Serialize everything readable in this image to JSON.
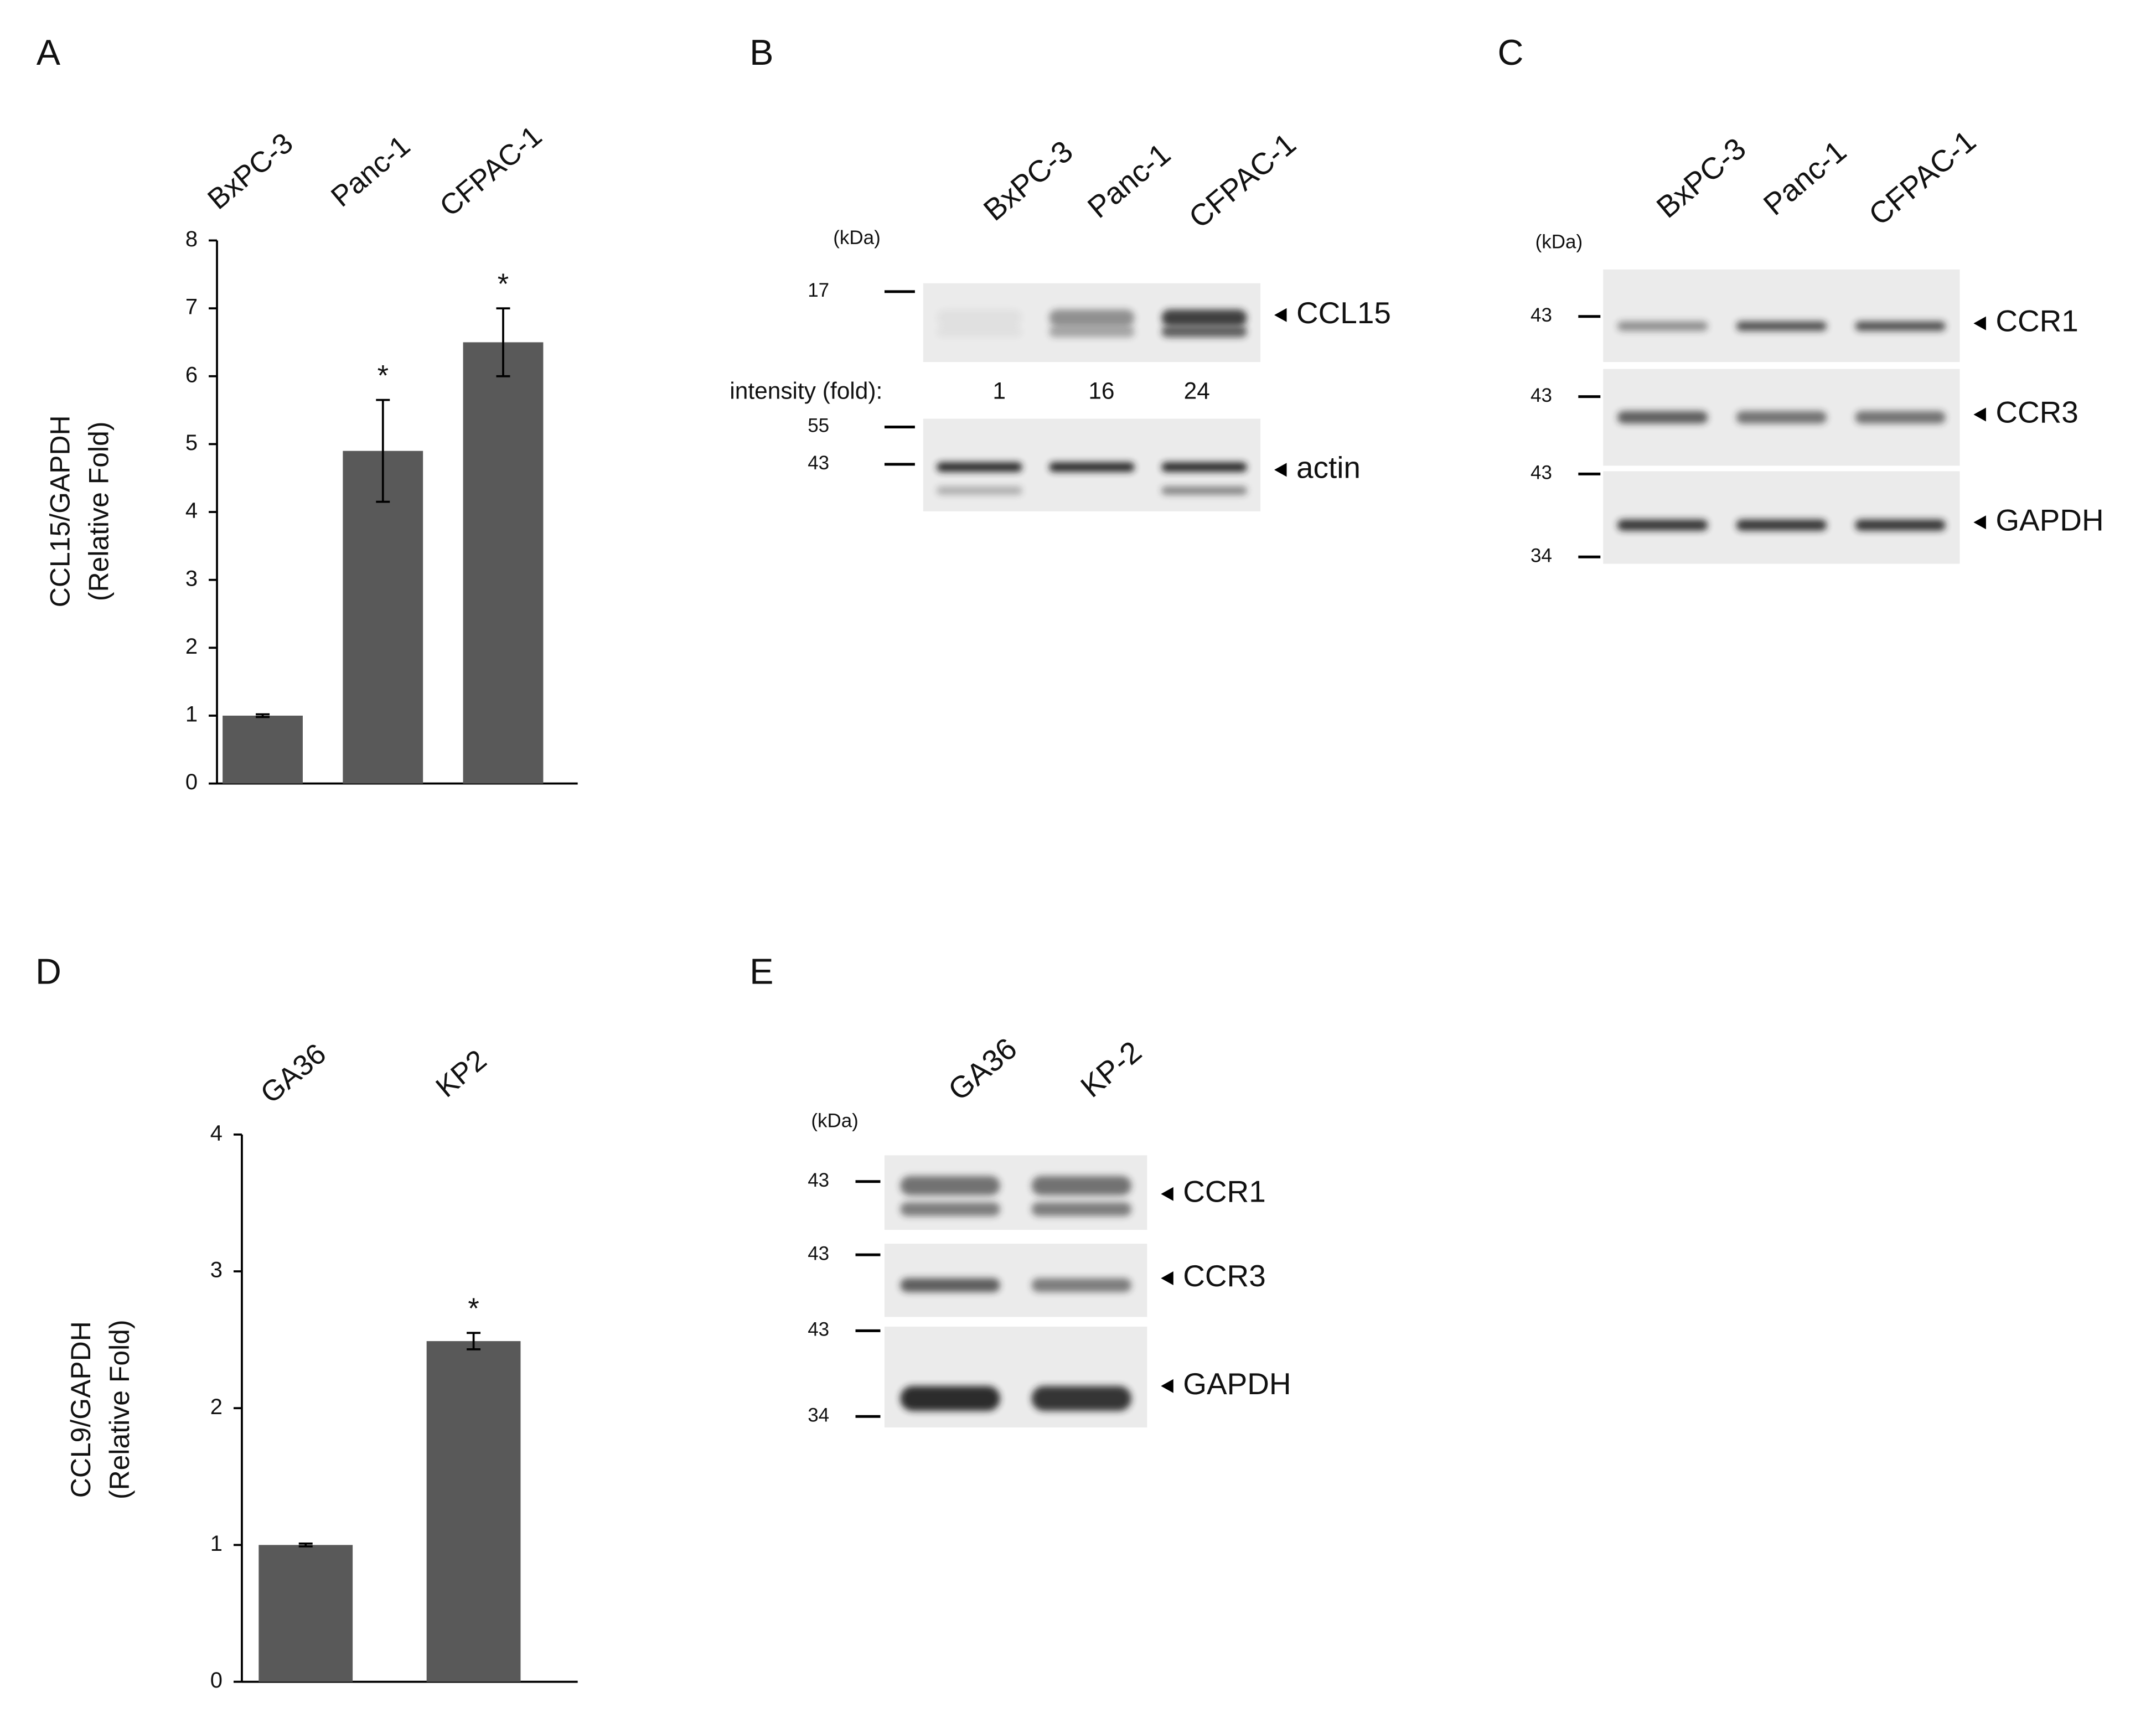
{
  "chart_data": [
    {
      "type": "bar",
      "panel_label": "A",
      "ylabel": [
        "CCL15/GAPDH",
        "(Relative Fold)"
      ],
      "categories": [
        "BxPC-3",
        "Panc-1",
        "CFPAC-1"
      ],
      "values": [
        1,
        4.9,
        6.5
      ],
      "errors": [
        0.02,
        0.75,
        0.5
      ],
      "significance": [
        null,
        "*",
        "*"
      ],
      "color": "#595959",
      "ylim": [
        0,
        8
      ],
      "yticks": [
        0,
        1,
        2,
        3,
        4,
        5,
        6,
        7,
        8
      ]
    },
    {
      "type": "bar",
      "panel_label": "D",
      "ylabel": [
        "CCL9/GAPDH",
        "(Relative Fold)"
      ],
      "categories": [
        "GA36",
        "KP2"
      ],
      "values": [
        1,
        2.49
      ],
      "errors": [
        0.01,
        0.06
      ],
      "significance": [
        null,
        "*"
      ],
      "color": "#595959",
      "ylim": [
        0,
        4
      ],
      "yticks": [
        0,
        1,
        2,
        3,
        4
      ]
    }
  ],
  "blots": [
    {
      "panel_label": "B",
      "unit": "(kDa)",
      "lanes": [
        "BxPC-3",
        "Panc-1",
        "CFPAC-1"
      ],
      "intensity_label": "intensity (fold):",
      "intensity": [
        1,
        16,
        24
      ],
      "strips": [
        {
          "name": "CCL15",
          "markers": [
            17
          ]
        },
        {
          "name": "actin",
          "markers": [
            55,
            43
          ]
        }
      ]
    },
    {
      "panel_label": "C",
      "unit": "(kDa)",
      "lanes": [
        "BxPC-3",
        "Panc-1",
        "CFPAC-1"
      ],
      "strips": [
        {
          "name": "CCR1",
          "markers": [
            43
          ]
        },
        {
          "name": "CCR3",
          "markers": [
            43
          ]
        },
        {
          "name": "GAPDH",
          "markers": [
            43,
            34
          ]
        }
      ]
    },
    {
      "panel_label": "E",
      "unit": "(kDa)",
      "lanes": [
        "GA36",
        "KP-2"
      ],
      "strips": [
        {
          "name": "CCR1",
          "markers": [
            43
          ]
        },
        {
          "name": "CCR3",
          "markers": [
            43
          ]
        },
        {
          "name": "GAPDH",
          "markers": [
            43,
            34
          ]
        }
      ]
    }
  ]
}
